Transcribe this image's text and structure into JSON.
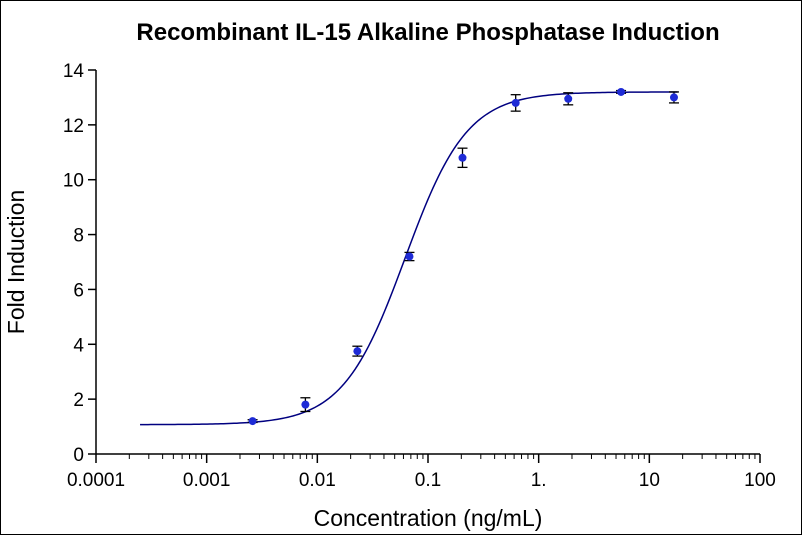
{
  "chart_data": {
    "type": "scatter",
    "title": "Recombinant IL-15 Alkaline Phosphatase Induction",
    "xlabel": "Concentration (ng/mL)",
    "ylabel": "Fold Induction",
    "xscale": "log",
    "xlim": [
      0.0001,
      100
    ],
    "ylim": [
      0,
      14
    ],
    "x_tick_labels": [
      "0.0001",
      "0.001",
      "0.01",
      "0.1",
      "1.",
      "10",
      "100"
    ],
    "x_tick_values": [
      0.0001,
      0.001,
      0.01,
      0.1,
      1,
      10,
      100
    ],
    "y_tick_values": [
      0,
      2,
      4,
      6,
      8,
      10,
      12,
      14
    ],
    "grid": false,
    "legend": "none",
    "series": [
      {
        "x": [
          0.0026,
          0.0078,
          0.023,
          0.068,
          0.205,
          0.62,
          1.85,
          5.55,
          16.7
        ],
        "y": [
          1.2,
          1.8,
          3.75,
          7.2,
          10.8,
          12.8,
          12.95,
          13.2,
          13.0
        ],
        "error": [
          0.05,
          0.25,
          0.18,
          0.15,
          0.35,
          0.3,
          0.22,
          0.05,
          0.2
        ],
        "color": "#1e2bd6"
      }
    ],
    "fit_curve": {
      "model": "4PL",
      "bottom": 1.07,
      "top": 13.2,
      "ec50": 0.062,
      "hill": 1.55,
      "x_range": [
        0.00025,
        18
      ],
      "color": "#000080"
    }
  },
  "style": {
    "marker_color": "#1e2bd6",
    "curve_color": "#000080",
    "axis_color": "#000000"
  }
}
